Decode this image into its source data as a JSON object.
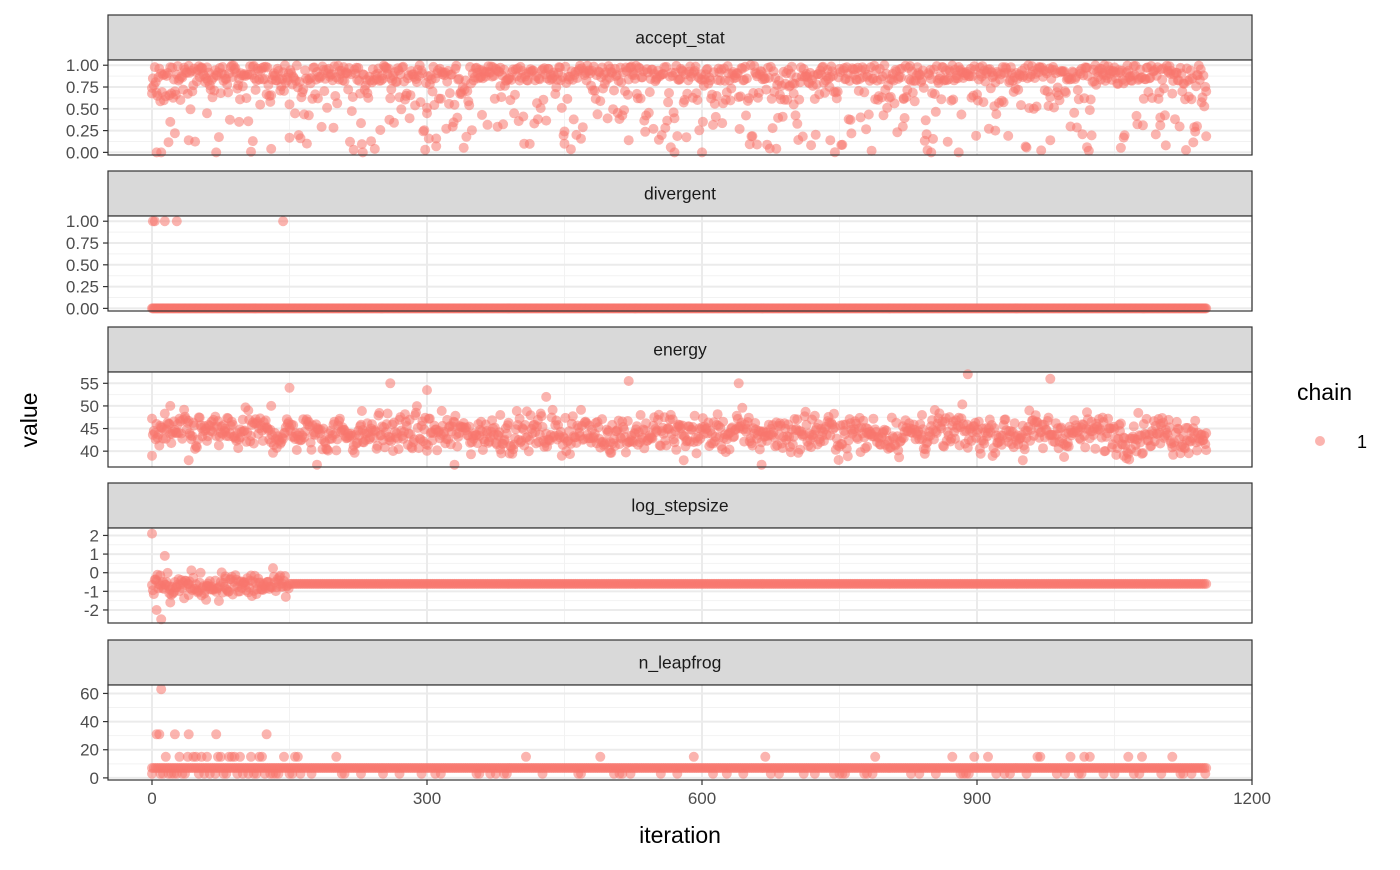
{
  "chart_data": {
    "type": "scatter",
    "xlabel": "iteration",
    "ylabel": "value",
    "x_ticks": [
      0,
      300,
      600,
      900,
      1200
    ],
    "x_range": [
      -48,
      1200
    ],
    "facet_labels": [
      "accept_stat",
      "divergent",
      "energy",
      "log_stepsize",
      "n_leapfrog"
    ],
    "legend": {
      "title": "chain",
      "entries": [
        "1"
      ],
      "position": "right"
    },
    "grid": true,
    "point_color": "#F8766D",
    "panels": [
      {
        "label": "accept_stat",
        "ylim": [
          -0.03,
          1.06
        ],
        "y_ticks": [
          "0.00",
          "0.25",
          "0.50",
          "0.75",
          "1.00"
        ],
        "y_tick_values": [
          0,
          0.25,
          0.5,
          0.75,
          1
        ],
        "summary": "iterations 0-1150, values mostly 0.75-1.00 with scattered lower values down to 0",
        "sample_points": [
          [
            0,
            0.74
          ],
          [
            5,
            0
          ],
          [
            10,
            0
          ],
          [
            20,
            0.35
          ],
          [
            25,
            0.22
          ],
          [
            40,
            0.14
          ],
          [
            60,
            0.45
          ],
          [
            70,
            0
          ],
          [
            95,
            0.35
          ],
          [
            110,
            0.13
          ],
          [
            130,
            0.04
          ],
          [
            150,
            0.55
          ],
          [
            230,
            0
          ],
          [
            260,
            0.62
          ],
          [
            300,
            0.45
          ],
          [
            310,
            0.07
          ],
          [
            360,
            0.43
          ],
          [
            380,
            0.76
          ],
          [
            450,
            0.1
          ],
          [
            520,
            0.14
          ],
          [
            570,
            0
          ],
          [
            600,
            0
          ],
          [
            660,
            0.09
          ],
          [
            700,
            0.55
          ],
          [
            740,
            0.14
          ],
          [
            820,
            0.62
          ],
          [
            850,
            0
          ],
          [
            880,
            0
          ],
          [
            920,
            0.25
          ],
          [
            980,
            0.14
          ],
          [
            1020,
            0.06
          ],
          [
            1060,
            0.17
          ],
          [
            1100,
            0.4
          ],
          [
            1140,
            0.3
          ],
          [
            1150,
            0.7
          ]
        ]
      },
      {
        "label": "divergent",
        "ylim": [
          -0.03,
          1.06
        ],
        "y_ticks": [
          "0.00",
          "0.25",
          "0.50",
          "0.75",
          "1.00"
        ],
        "y_tick_values": [
          0,
          0.25,
          0.5,
          0.75,
          1
        ],
        "summary": "value 0 for all iterations 0-1150 except 1 at iterations 1, 3, 14, 27, 143",
        "points_one": [
          1,
          3,
          14,
          27,
          143
        ],
        "range": [
          0,
          1150
        ],
        "constant": 0
      },
      {
        "label": "energy",
        "ylim": [
          36.5,
          57.5
        ],
        "y_ticks": [
          "40",
          "45",
          "50",
          "55"
        ],
        "y_tick_values": [
          40,
          45,
          50,
          55
        ],
        "summary": "values fluctuate between about 37 and 57, centred near 44",
        "sample_points": [
          [
            0,
            39
          ],
          [
            20,
            50
          ],
          [
            40,
            38
          ],
          [
            80,
            45
          ],
          [
            130,
            50
          ],
          [
            150,
            54
          ],
          [
            180,
            37
          ],
          [
            230,
            42
          ],
          [
            260,
            55
          ],
          [
            300,
            53.5
          ],
          [
            330,
            37
          ],
          [
            380,
            48
          ],
          [
            430,
            52
          ],
          [
            500,
            42
          ],
          [
            520,
            55.5
          ],
          [
            580,
            38
          ],
          [
            640,
            55
          ],
          [
            665,
            37
          ],
          [
            720,
            47
          ],
          [
            780,
            41
          ],
          [
            840,
            48
          ],
          [
            890,
            57
          ],
          [
            950,
            38
          ],
          [
            980,
            56
          ],
          [
            1000,
            44
          ],
          [
            1060,
            39
          ],
          [
            1100,
            46
          ],
          [
            1150,
            44
          ]
        ]
      },
      {
        "label": "log_stepsize",
        "ylim": [
          -2.7,
          2.4
        ],
        "y_ticks": [
          "-2",
          "-1",
          "0",
          "1",
          "2"
        ],
        "y_tick_values": [
          -2,
          -1,
          0,
          1,
          2
        ],
        "summary": "adaptation phase iterations 0-150 varies between -2.5 and 2.1, then constant at -0.6 to iteration 1150",
        "sample_points": [
          [
            0,
            2.1
          ],
          [
            5,
            -2
          ],
          [
            10,
            -2.5
          ],
          [
            14,
            0.9
          ],
          [
            20,
            -1.6
          ],
          [
            40,
            -1.2
          ],
          [
            60,
            -0.7
          ],
          [
            80,
            -0.2
          ],
          [
            100,
            -0.5
          ],
          [
            120,
            -0.9
          ],
          [
            140,
            -0.6
          ]
        ],
        "constant": -0.6,
        "constant_range": [
          150,
          1150
        ]
      },
      {
        "label": "n_leapfrog",
        "ylim": [
          -1.5,
          66
        ],
        "y_ticks": [
          "0",
          "20",
          "40",
          "60"
        ],
        "y_tick_values": [
          0,
          20,
          40,
          60
        ],
        "summary": "mostly 7, frequent 15 and 3, early outliers 31 and 63",
        "early_points": [
          [
            5,
            31
          ],
          [
            8,
            31
          ],
          [
            10,
            63
          ],
          [
            25,
            31
          ],
          [
            40,
            31
          ],
          [
            70,
            31
          ],
          [
            125,
            31
          ]
        ],
        "constant": 7,
        "constant_range": [
          0,
          1150
        ],
        "alt_values": [
          3,
          15
        ]
      }
    ]
  }
}
